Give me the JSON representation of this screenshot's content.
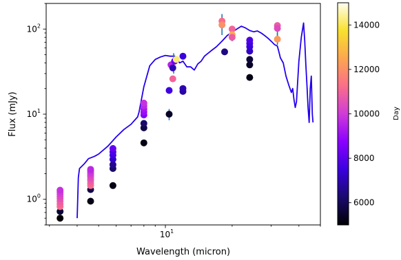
{
  "chart_data": {
    "type": "scatter",
    "x_scale": "log",
    "y_scale": "log",
    "xlim": [
      2.9,
      50
    ],
    "ylim": [
      0.5,
      200
    ],
    "xlabel": "Wavelength (micron)",
    "ylabel": "Flux (mJy)",
    "x_ticks": [
      {
        "value": 10,
        "label": "10",
        "sup": "1"
      }
    ],
    "y_ticks": [
      {
        "value": 1,
        "label": "10",
        "sup": "0"
      },
      {
        "value": 10,
        "label": "10",
        "sup": "1"
      },
      {
        "value": 100,
        "label": "10",
        "sup": "2"
      }
    ],
    "colorbar": {
      "label": "Day",
      "range": [
        5000,
        15000
      ],
      "ticks": [
        "6000",
        "8000",
        "10000",
        "12000",
        "14000"
      ],
      "colormap": [
        "#000004",
        "#1a0a6e",
        "#3a00e0",
        "#8a00ff",
        "#d03bd8",
        "#fb6e8a",
        "#fca650",
        "#f8e12d",
        "#fffff0"
      ]
    },
    "model_line": {
      "color": "#2200ee",
      "points": [
        [
          4.0,
          0.6
        ],
        [
          4.05,
          1.8
        ],
        [
          4.1,
          2.3
        ],
        [
          4.3,
          2.6
        ],
        [
          4.5,
          3.0
        ],
        [
          4.8,
          3.2
        ],
        [
          5.0,
          3.4
        ],
        [
          5.5,
          4.2
        ],
        [
          6.0,
          5.4
        ],
        [
          6.5,
          6.6
        ],
        [
          7.0,
          7.6
        ],
        [
          7.5,
          9.3
        ],
        [
          7.6,
          10.5
        ],
        [
          8.0,
          21
        ],
        [
          8.5,
          37
        ],
        [
          9.0,
          44
        ],
        [
          9.5,
          47
        ],
        [
          10.0,
          49
        ],
        [
          10.5,
          48
        ],
        [
          11.0,
          48
        ],
        [
          11.3,
          44
        ],
        [
          11.6,
          40
        ],
        [
          12.0,
          42
        ],
        [
          12.5,
          36
        ],
        [
          13.0,
          36
        ],
        [
          13.5,
          33
        ],
        [
          14.0,
          39
        ],
        [
          14.5,
          42
        ],
        [
          15.0,
          48
        ],
        [
          16.0,
          55
        ],
        [
          17.0,
          62
        ],
        [
          18.0,
          72
        ],
        [
          19.0,
          84
        ],
        [
          20.0,
          92
        ],
        [
          21.0,
          100
        ],
        [
          22.0,
          108
        ],
        [
          23.0,
          103
        ],
        [
          24.0,
          96
        ],
        [
          25.0,
          93
        ],
        [
          26.0,
          95
        ],
        [
          27.0,
          90
        ],
        [
          28.0,
          84
        ],
        [
          29.0,
          78
        ],
        [
          30.0,
          72
        ],
        [
          31.0,
          66
        ],
        [
          32.0,
          63
        ],
        [
          32.5,
          54
        ],
        [
          33.0,
          46
        ],
        [
          34.0,
          40
        ],
        [
          35.0,
          28
        ],
        [
          36.0,
          22
        ],
        [
          37.0,
          18
        ],
        [
          37.5,
          20
        ],
        [
          38.0,
          15
        ],
        [
          38.5,
          12
        ],
        [
          39.0,
          14
        ],
        [
          40.0,
          42
        ],
        [
          41.0,
          80
        ],
        [
          42.0,
          118
        ],
        [
          42.5,
          72
        ],
        [
          43.0,
          38
        ],
        [
          43.5,
          22
        ],
        [
          44.0,
          12
        ],
        [
          44.5,
          8
        ],
        [
          45.0,
          20
        ],
        [
          45.5,
          28
        ],
        [
          46.0,
          10
        ],
        [
          46.3,
          8
        ]
      ]
    },
    "error_bars": [
      {
        "x": 10.4,
        "y": 10.0,
        "lo": 8.5,
        "hi": 11.5
      },
      {
        "x": 10.9,
        "y": 40,
        "lo": 30,
        "hi": 52
      },
      {
        "x": 18.0,
        "y": 115,
        "lo": 85,
        "hi": 150
      },
      {
        "x": 20.0,
        "y": 88,
        "lo": 72,
        "hi": 105
      },
      {
        "x": 32.0,
        "y": 100,
        "lo": 80,
        "hi": 120
      },
      {
        "x": 32.0,
        "y": 76,
        "lo": 65,
        "hi": 90
      }
    ],
    "points": [
      {
        "x": 3.35,
        "y": 0.6,
        "day": 5000
      },
      {
        "x": 3.35,
        "y": 0.72,
        "day": 5600
      },
      {
        "x": 3.35,
        "y": 0.82,
        "day": 11200
      },
      {
        "x": 3.35,
        "y": 0.88,
        "day": 11000
      },
      {
        "x": 3.35,
        "y": 0.95,
        "day": 10800
      },
      {
        "x": 3.35,
        "y": 1.02,
        "day": 10600
      },
      {
        "x": 3.35,
        "y": 1.08,
        "day": 10400
      },
      {
        "x": 3.35,
        "y": 1.15,
        "day": 10200
      },
      {
        "x": 3.35,
        "y": 1.22,
        "day": 10000
      },
      {
        "x": 3.35,
        "y": 1.28,
        "day": 9800
      },
      {
        "x": 4.6,
        "y": 0.95,
        "day": 5200
      },
      {
        "x": 4.6,
        "y": 1.3,
        "day": 5800
      },
      {
        "x": 4.6,
        "y": 1.45,
        "day": 11200
      },
      {
        "x": 4.6,
        "y": 1.55,
        "day": 11000
      },
      {
        "x": 4.6,
        "y": 1.65,
        "day": 10800
      },
      {
        "x": 4.6,
        "y": 1.75,
        "day": 10600
      },
      {
        "x": 4.6,
        "y": 1.85,
        "day": 10400
      },
      {
        "x": 4.6,
        "y": 1.95,
        "day": 10200
      },
      {
        "x": 4.6,
        "y": 2.05,
        "day": 10000
      },
      {
        "x": 4.6,
        "y": 2.15,
        "day": 9800
      },
      {
        "x": 4.6,
        "y": 2.25,
        "day": 9600
      },
      {
        "x": 5.8,
        "y": 1.45,
        "day": 5200
      },
      {
        "x": 5.8,
        "y": 2.3,
        "day": 6200
      },
      {
        "x": 5.8,
        "y": 2.55,
        "day": 6600
      },
      {
        "x": 5.8,
        "y": 2.95,
        "day": 7200
      },
      {
        "x": 5.8,
        "y": 3.3,
        "day": 7600
      },
      {
        "x": 5.8,
        "y": 3.6,
        "day": 7800
      },
      {
        "x": 5.8,
        "y": 3.95,
        "day": 8200
      },
      {
        "x": 8.0,
        "y": 4.6,
        "day": 5200
      },
      {
        "x": 8.0,
        "y": 6.9,
        "day": 5800
      },
      {
        "x": 8.0,
        "y": 7.8,
        "day": 6200
      },
      {
        "x": 8.0,
        "y": 9.8,
        "day": 8600
      },
      {
        "x": 8.0,
        "y": 10.6,
        "day": 9000
      },
      {
        "x": 8.0,
        "y": 11.5,
        "day": 9200
      },
      {
        "x": 8.0,
        "y": 12.5,
        "day": 9600
      },
      {
        "x": 8.0,
        "y": 13.5,
        "day": 9800
      },
      {
        "x": 10.4,
        "y": 10.0,
        "day": 5400
      },
      {
        "x": 10.4,
        "y": 19.0,
        "day": 7600
      },
      {
        "x": 10.6,
        "y": 38,
        "day": 9500
      },
      {
        "x": 10.8,
        "y": 35,
        "day": 7000
      },
      {
        "x": 10.8,
        "y": 26,
        "day": 11000
      },
      {
        "x": 11.0,
        "y": 42,
        "day": 8200
      },
      {
        "x": 11.2,
        "y": 44,
        "day": 14200
      },
      {
        "x": 12.0,
        "y": 18.5,
        "day": 6800
      },
      {
        "x": 12.0,
        "y": 20.0,
        "day": 7000
      },
      {
        "x": 12.0,
        "y": 48,
        "day": 7500
      },
      {
        "x": 18.0,
        "y": 124,
        "day": 11200
      },
      {
        "x": 18.0,
        "y": 112,
        "day": 12000
      },
      {
        "x": 18.5,
        "y": 54,
        "day": 6500
      },
      {
        "x": 20.0,
        "y": 100,
        "day": 11000
      },
      {
        "x": 20.0,
        "y": 86,
        "day": 12600
      },
      {
        "x": 20.0,
        "y": 80,
        "day": 10800
      },
      {
        "x": 24.0,
        "y": 27,
        "day": 5200
      },
      {
        "x": 24.0,
        "y": 38,
        "day": 5400
      },
      {
        "x": 24.0,
        "y": 44,
        "day": 5600
      },
      {
        "x": 24.0,
        "y": 55,
        "day": 7200
      },
      {
        "x": 24.0,
        "y": 62,
        "day": 7400
      },
      {
        "x": 24.0,
        "y": 68,
        "day": 7600
      },
      {
        "x": 24.0,
        "y": 74,
        "day": 7800
      },
      {
        "x": 32.0,
        "y": 110,
        "day": 10800
      },
      {
        "x": 32.0,
        "y": 102,
        "day": 10400
      },
      {
        "x": 32.0,
        "y": 76,
        "day": 12200
      }
    ]
  }
}
